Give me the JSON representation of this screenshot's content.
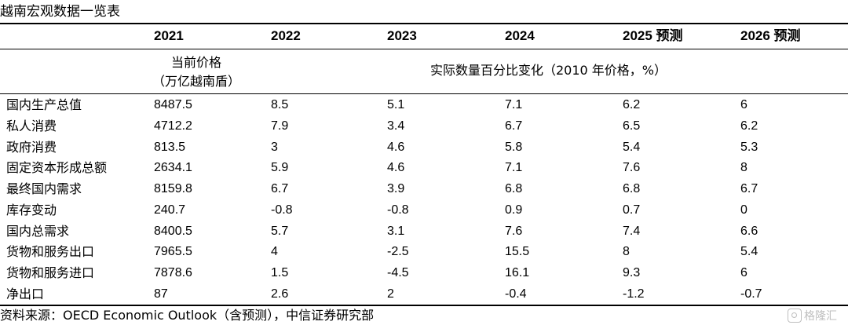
{
  "title": "越南宏观数据一览表",
  "columns": [
    "2021",
    "2022",
    "2023",
    "2024",
    "2025 预测",
    "2026 预测"
  ],
  "unit_left": [
    "当前价格",
    "（万亿越南盾）"
  ],
  "unit_right": "实际数量百分比变化（2010 年价格，%）",
  "rows": [
    {
      "label": "国内生产总值",
      "values": [
        "8487.5",
        "8.5",
        "5.1",
        "7.1",
        "6.2",
        "6"
      ]
    },
    {
      "label": "私人消费",
      "values": [
        "4712.2",
        "7.9",
        "3.4",
        "6.7",
        "6.5",
        "6.2"
      ]
    },
    {
      "label": "政府消费",
      "values": [
        "813.5",
        "3",
        "4.6",
        "5.8",
        "5.4",
        "5.3"
      ]
    },
    {
      "label": "固定资本形成总额",
      "values": [
        "2634.1",
        "5.9",
        "4.6",
        "7.1",
        "7.6",
        "8"
      ]
    },
    {
      "label": "最终国内需求",
      "values": [
        "8159.8",
        "6.7",
        "3.9",
        "6.8",
        "6.8",
        "6.7"
      ]
    },
    {
      "label": "库存变动",
      "values": [
        "240.7",
        "-0.8",
        "-0.8",
        "0.9",
        "0.7",
        "0"
      ]
    },
    {
      "label": "国内总需求",
      "values": [
        "8400.5",
        "5.7",
        "3.1",
        "7.6",
        "7.4",
        "6.6"
      ]
    },
    {
      "label": "货物和服务出口",
      "values": [
        "7965.5",
        "4",
        "-2.5",
        "15.5",
        "8",
        "5.4"
      ]
    },
    {
      "label": "货物和服务进口",
      "values": [
        "7878.6",
        "1.5",
        "-4.5",
        "16.1",
        "9.3",
        "6"
      ]
    },
    {
      "label": "净出口",
      "values": [
        "87",
        "2.6",
        "2",
        "-0.4",
        "-1.2",
        "-0.7"
      ]
    }
  ],
  "source": "资料来源：OECD Economic Outlook（含预测），中信证券研究部",
  "watermark": "格隆汇"
}
